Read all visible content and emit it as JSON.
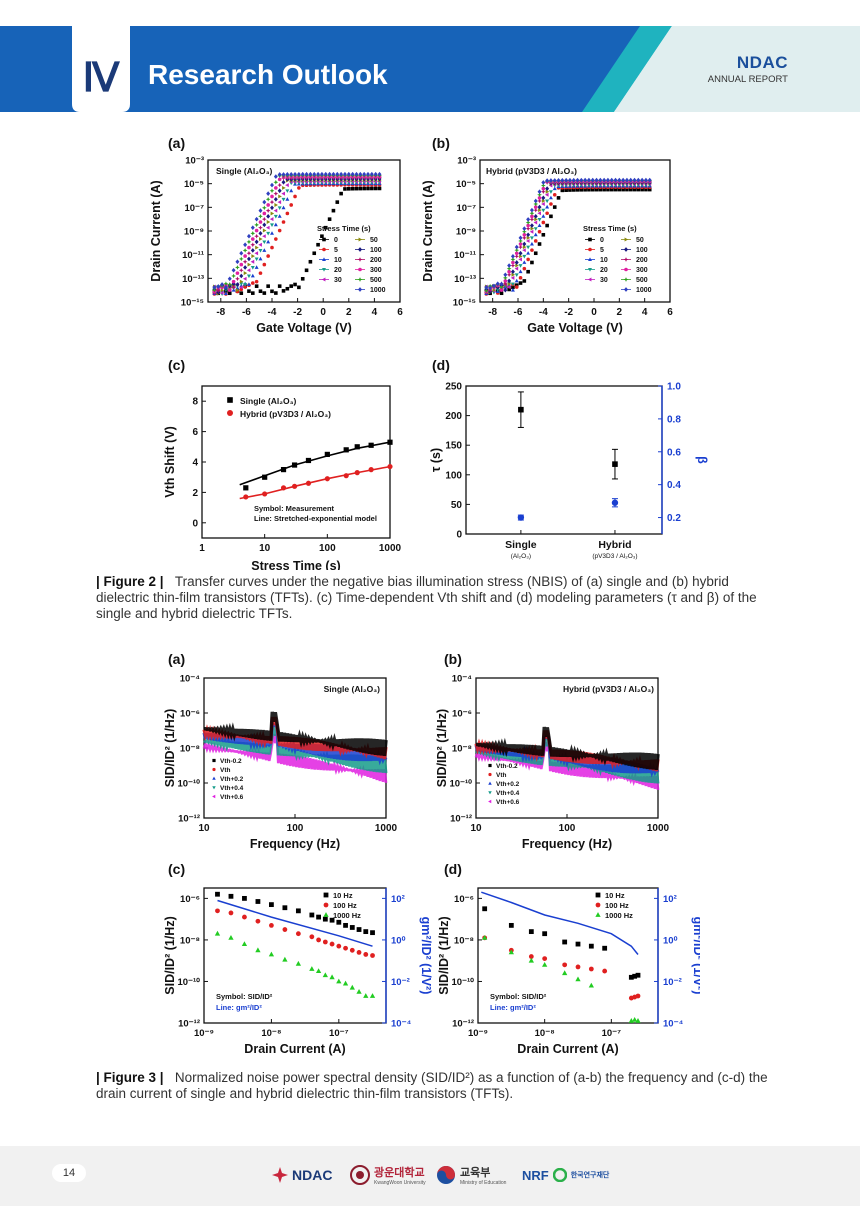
{
  "header": {
    "chapter_number": "Ⅳ",
    "section_title": "Research Outlook",
    "brand_name": "NDAC",
    "brand_sub": "ANNUAL REPORT",
    "colors": {
      "band_dark": "#1763b8",
      "band_teal": "#1fb3bf",
      "band_light": "#dfeef0"
    }
  },
  "figure2": {
    "caption_label": "| Figure 2 |",
    "caption_text": "Transfer curves under the negative bias illumination stress (NBIS) of (a) single and (b) hybrid dielectric thin-film transistors (TFTs). (c) Time-dependent Vth shift and (d) modeling parameters (τ and β) of the single and hybrid dielectric TFTs.",
    "panels": {
      "a": {
        "letter": "(a)",
        "inset": "Single (Al₂O₃)"
      },
      "b": {
        "letter": "(b)",
        "inset": "Hybrid (pV3D3 / Al₂O₃)"
      },
      "c": {
        "letter": "(c)"
      },
      "d": {
        "letter": "(d)"
      }
    },
    "transfer_legend_title": "Stress Time (s)",
    "transfer_legend_items": [
      "0",
      "5",
      "10",
      "20",
      "30",
      "50",
      "100",
      "200",
      "300",
      "500",
      "1000"
    ],
    "c_legend": [
      "Single (Al₂O₃)",
      "Hybrid (pV3D3 / Al₂O₃)"
    ],
    "c_note1": "Symbol: Measurement",
    "c_note2": "Line: Stretched-exponential model",
    "d_cat_sub1": "(Al₂O₃)",
    "d_cat_sub2": "(pV3D3 / Al₂O₃)"
  },
  "figure3": {
    "caption_label": "| Figure 3 |",
    "caption_text": "Normalized noise power spectral density (SID/ID²) as a function of (a-b) the frequency and (c-d) the drain current of single and hybrid dielectric thin-film transistors (TFTs).",
    "panels": {
      "a": {
        "letter": "(a)",
        "inset": "Single (Al₂O₃)"
      },
      "b": {
        "letter": "(b)",
        "inset": "Hybrid (pV3D3 / Al₂O₃)"
      },
      "c": {
        "letter": "(c)"
      },
      "d": {
        "letter": "(d)"
      }
    },
    "noise_legend": [
      "Vth-0.2",
      "Vth",
      "Vth+0.2",
      "Vth+0.4",
      "Vth+0.6"
    ],
    "current_legend": [
      "10 Hz",
      "100 Hz",
      "1000 Hz"
    ],
    "note1": "Symbol: SID/ID²",
    "note2": "Line: gm²/ID²"
  },
  "chart_data": [
    {
      "id": "fig2a",
      "type": "scatter",
      "title": "Single (Al₂O₃)",
      "xlabel": "Gate Voltage (V)",
      "ylabel": "Drain Current (A)",
      "xlim": [
        -9,
        6
      ],
      "ylim_log10": [
        -15,
        -3
      ],
      "yscale": "log",
      "xticks": [
        -8,
        -6,
        -4,
        -2,
        0,
        2,
        4,
        6
      ],
      "yticks_exp": [
        -3,
        -5,
        -7,
        -9,
        -11,
        -13,
        -15
      ],
      "series_names": [
        "0",
        "5",
        "10",
        "20",
        "30",
        "50",
        "100",
        "200",
        "300",
        "500",
        "1000"
      ],
      "curves": {
        "s_log10": [
          -5.4,
          -5.1,
          -5.0,
          -4.9,
          -4.8,
          -4.7,
          -4.6,
          -4.5,
          -4.4,
          -4.3,
          -4.2
        ],
        "von": [
          -2.0,
          -5.5,
          -6.0,
          -6.3,
          -6.5,
          -6.7,
          -6.9,
          -7.1,
          -7.3,
          -7.5,
          -7.7
        ],
        "floor_log10": -14,
        "slope_per_V": 2.4,
        "x_end": 4.5
      }
    },
    {
      "id": "fig2b",
      "type": "scatter",
      "title": "Hybrid (pV3D3 / Al₂O₃)",
      "xlabel": "Gate Voltage (V)",
      "ylabel": "Drain Current (A)",
      "xlim": [
        -9,
        6
      ],
      "ylim_log10": [
        -15,
        -3
      ],
      "yscale": "log",
      "xticks": [
        -8,
        -6,
        -4,
        -2,
        0,
        2,
        4,
        6
      ],
      "yticks_exp": [
        -3,
        -5,
        -7,
        -9,
        -11,
        -13,
        -15
      ],
      "series_names": [
        "0",
        "5",
        "10",
        "20",
        "30",
        "50",
        "100",
        "200",
        "300",
        "500",
        "1000"
      ],
      "curves": {
        "s_log10": [
          -5.5,
          -5.3,
          -5.2,
          -5.1,
          -5.0,
          -4.95,
          -4.9,
          -4.85,
          -4.8,
          -4.75,
          -4.7
        ],
        "von": [
          -5.8,
          -6.2,
          -6.4,
          -6.6,
          -6.8,
          -6.9,
          -7.0,
          -7.2,
          -7.3,
          -7.4,
          -7.5
        ],
        "floor_log10": -14,
        "slope_per_V": 2.6,
        "x_end": 4.5
      }
    },
    {
      "id": "fig2c",
      "type": "scatter",
      "xlabel": "Stress Time (s)",
      "ylabel": "Vth Shift (V)",
      "xscale": "log",
      "xlim": [
        1,
        1000
      ],
      "ylim": [
        -1,
        9
      ],
      "xticks": [
        1,
        10,
        100,
        1000
      ],
      "yticks": [
        0,
        2,
        4,
        6,
        8
      ],
      "series": [
        {
          "name": "Single (Al₂O₃)",
          "x": [
            5,
            10,
            20,
            30,
            50,
            100,
            200,
            300,
            500,
            1000
          ],
          "y": [
            2.3,
            3.0,
            3.5,
            3.8,
            4.1,
            4.5,
            4.8,
            5.0,
            5.1,
            5.3
          ],
          "model_x": [
            4,
            10,
            30,
            100,
            300,
            1000
          ],
          "model_y": [
            2.5,
            3.1,
            3.8,
            4.4,
            4.9,
            5.3
          ]
        },
        {
          "name": "Hybrid (pV3D3 / Al₂O₃)",
          "x": [
            5,
            10,
            20,
            30,
            50,
            100,
            200,
            300,
            500,
            1000
          ],
          "y": [
            1.7,
            1.9,
            2.3,
            2.4,
            2.6,
            2.9,
            3.1,
            3.3,
            3.5,
            3.7
          ],
          "model_x": [
            4,
            10,
            30,
            100,
            300,
            1000
          ],
          "model_y": [
            1.6,
            1.9,
            2.4,
            2.9,
            3.3,
            3.7
          ]
        }
      ]
    },
    {
      "id": "fig2d",
      "type": "scatter",
      "categories": [
        "Single",
        "Hybrid"
      ],
      "ylabel": "τ (s)",
      "y2label": "β",
      "ylim": [
        0,
        250
      ],
      "y2lim": [
        0.1,
        1.0
      ],
      "yticks": [
        0,
        50,
        100,
        150,
        200,
        250
      ],
      "y2ticks": [
        0.2,
        0.4,
        0.6,
        0.8,
        1.0
      ],
      "series": [
        {
          "name": "τ",
          "values": [
            210,
            118
          ],
          "errors": [
            30,
            25
          ],
          "axis": "left"
        },
        {
          "name": "β",
          "values": [
            0.2,
            0.29
          ],
          "errors": [
            0.015,
            0.025
          ],
          "axis": "right"
        }
      ]
    },
    {
      "id": "fig3a",
      "type": "line",
      "title": "Single (Al₂O₃)",
      "xlabel": "Frequency (Hz)",
      "ylabel": "SID/ID² (1/Hz)",
      "xscale": "log",
      "yscale": "log",
      "xlim": [
        10,
        1000
      ],
      "ylim_log10": [
        -12,
        -4
      ],
      "xticks": [
        10,
        100,
        1000
      ],
      "yticks_exp": [
        -4,
        -6,
        -8,
        -10,
        -12
      ],
      "series_names": [
        "Vth-0.2",
        "Vth",
        "Vth+0.2",
        "Vth+0.4",
        "Vth+0.6"
      ],
      "levels": {
        "start_log10": [
          -6.9,
          -7.1,
          -7.3,
          -7.6,
          -7.9
        ],
        "end_log10": [
          -8.0,
          -8.3,
          -8.6,
          -9.0,
          -9.6
        ],
        "spike_hz": 60
      }
    },
    {
      "id": "fig3b",
      "type": "line",
      "title": "Hybrid (pV3D3 / Al₂O₃)",
      "xlabel": "Frequency (Hz)",
      "ylabel": "SID/ID² (1/Hz)",
      "xscale": "log",
      "yscale": "log",
      "xlim": [
        10,
        1000
      ],
      "ylim_log10": [
        -12,
        -4
      ],
      "xticks": [
        10,
        100,
        1000
      ],
      "yticks_exp": [
        -4,
        -6,
        -8,
        -10,
        -12
      ],
      "series_names": [
        "Vth-0.2",
        "Vth",
        "Vth+0.2",
        "Vth+0.4",
        "Vth+0.6"
      ],
      "levels": {
        "start_log10": [
          -7.8,
          -7.9,
          -8.0,
          -8.2,
          -8.4
        ],
        "end_log10": [
          -8.8,
          -9.0,
          -9.3,
          -9.6,
          -10.0
        ],
        "spike_hz": 60
      }
    },
    {
      "id": "fig3c",
      "type": "scatter",
      "xlabel": "Drain Current (A)",
      "ylabel": "SID/ID² (1/Hz)",
      "y2label": "gm²/ID² (1/V²)",
      "xscale": "log",
      "yscale": "log",
      "xlim_log10": [
        -9,
        -6.3
      ],
      "ylim_log10": [
        -12,
        -5.5
      ],
      "y2lim_log10": [
        -4,
        2.5
      ],
      "xticks_exp": [
        -9,
        -8,
        -7
      ],
      "yticks_exp": [
        -6,
        -8,
        -10,
        -12
      ],
      "y2ticks_exp": [
        2,
        0,
        -2,
        -4
      ],
      "series": [
        {
          "name": "10 Hz",
          "x_log10": [
            -8.8,
            -8.6,
            -8.4,
            -8.2,
            -8.0,
            -7.8,
            -7.6,
            -7.4,
            -7.3,
            -7.2,
            -7.1,
            -7.0,
            -6.9,
            -6.8,
            -6.7,
            -6.6,
            -6.5
          ],
          "y_log10": [
            -5.8,
            -5.9,
            -6.0,
            -6.15,
            -6.3,
            -6.45,
            -6.6,
            -6.8,
            -6.9,
            -7.0,
            -7.05,
            -7.15,
            -7.3,
            -7.4,
            -7.5,
            -7.6,
            -7.65
          ]
        },
        {
          "name": "100 Hz",
          "x_log10": [
            -8.8,
            -8.6,
            -8.4,
            -8.2,
            -8.0,
            -7.8,
            -7.6,
            -7.4,
            -7.3,
            -7.2,
            -7.1,
            -7.0,
            -6.9,
            -6.8,
            -6.7,
            -6.6,
            -6.5
          ],
          "y_log10": [
            -6.6,
            -6.7,
            -6.9,
            -7.1,
            -7.3,
            -7.5,
            -7.7,
            -7.85,
            -8.0,
            -8.1,
            -8.2,
            -8.3,
            -8.4,
            -8.5,
            -8.6,
            -8.7,
            -8.75
          ]
        },
        {
          "name": "1000 Hz",
          "x_log10": [
            -8.8,
            -8.6,
            -8.4,
            -8.2,
            -8.0,
            -7.8,
            -7.6,
            -7.4,
            -7.3,
            -7.2,
            -7.1,
            -7.0,
            -6.9,
            -6.8,
            -6.7,
            -6.6,
            -6.5
          ],
          "y_log10": [
            -7.7,
            -7.9,
            -8.2,
            -8.5,
            -8.7,
            -8.95,
            -9.15,
            -9.4,
            -9.5,
            -9.7,
            -9.8,
            -10.0,
            -10.1,
            -10.3,
            -10.5,
            -10.7,
            -10.7
          ]
        },
        {
          "name": "gm²/ID²",
          "axis": "right",
          "line": true,
          "x_log10": [
            -8.8,
            -8.0,
            -7.0,
            -6.5
          ],
          "y_log10": [
            1.9,
            1.1,
            0.2,
            -0.3
          ]
        }
      ]
    },
    {
      "id": "fig3d",
      "type": "scatter",
      "xlabel": "Drain Current (A)",
      "ylabel": "SID/ID² (1/Hz)",
      "y2label": "gm²/ID² (1/V²)",
      "xscale": "log",
      "yscale": "log",
      "xlim_log10": [
        -9,
        -6.3
      ],
      "ylim_log10": [
        -12,
        -5.5
      ],
      "y2lim_log10": [
        -4,
        2.5
      ],
      "xticks_exp": [
        -9,
        -8,
        -7
      ],
      "yticks_exp": [
        -6,
        -8,
        -10,
        -12
      ],
      "y2ticks_exp": [
        2,
        0,
        -2,
        -4
      ],
      "series": [
        {
          "name": "10 Hz",
          "x_log10": [
            -8.9,
            -8.5,
            -8.2,
            -8.0,
            -7.7,
            -7.5,
            -7.3,
            -7.1,
            -6.7,
            -6.65,
            -6.6
          ],
          "y_log10": [
            -6.5,
            -7.3,
            -7.6,
            -7.7,
            -8.1,
            -8.2,
            -8.3,
            -8.4,
            -9.8,
            -9.75,
            -9.7
          ]
        },
        {
          "name": "100 Hz",
          "x_log10": [
            -8.9,
            -8.5,
            -8.2,
            -8.0,
            -7.7,
            -7.5,
            -7.3,
            -7.1,
            -6.7,
            -6.65,
            -6.6
          ],
          "y_log10": [
            -7.9,
            -8.5,
            -8.8,
            -8.9,
            -9.2,
            -9.3,
            -9.4,
            -9.5,
            -10.8,
            -10.75,
            -10.7
          ]
        },
        {
          "name": "1000 Hz",
          "x_log10": [
            -8.9,
            -8.5,
            -8.2,
            -8.0,
            -7.7,
            -7.5,
            -7.3,
            -6.7,
            -6.65,
            -6.6
          ],
          "y_log10": [
            -7.9,
            -8.6,
            -9.0,
            -9.2,
            -9.6,
            -9.9,
            -10.2,
            -11.9,
            -11.85,
            -11.9
          ]
        },
        {
          "name": "gm²/ID²",
          "axis": "right",
          "line": true,
          "x_log10": [
            -8.95,
            -8.5,
            -8.0,
            -7.5,
            -7.0,
            -6.7,
            -6.6
          ],
          "y_log10": [
            2.3,
            1.8,
            1.2,
            0.8,
            0.3,
            -0.3,
            -0.7
          ]
        }
      ]
    }
  ],
  "footer": {
    "page_number": "14",
    "logos": [
      {
        "name": "NDAC",
        "text": "NDAC"
      },
      {
        "name": "Kwangwoon University",
        "text": "광운대학교",
        "sub": "KwangWoon University"
      },
      {
        "name": "Ministry of Education",
        "text": "교육부",
        "sub": "Ministry of Education"
      },
      {
        "name": "NRF",
        "text": "NRF",
        "sub": "한국연구재단"
      }
    ]
  }
}
